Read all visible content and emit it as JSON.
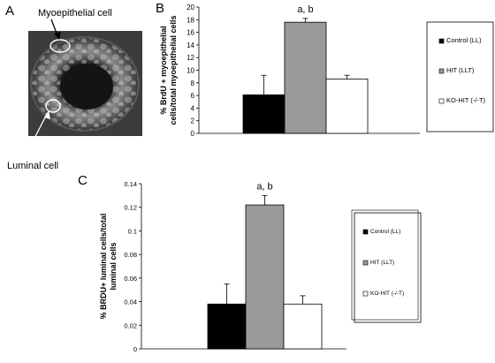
{
  "panel_a": {
    "letter": "A",
    "label_myoepithelial": "Myoepithelial cell",
    "label_luminal": "Luminal cell"
  },
  "panel_b": {
    "letter": "B",
    "significance": "a, b"
  },
  "panel_c": {
    "letter": "C",
    "significance": "a, b"
  },
  "chart_data": [
    {
      "panel": "B",
      "type": "bar",
      "categories": [
        "Control (LL)",
        "HIT (LLT)",
        "KO-HIT (-/-T)"
      ],
      "values": [
        6.1,
        17.6,
        8.6
      ],
      "errors": [
        3.1,
        0.6,
        0.6
      ],
      "colors": [
        "#000000",
        "#999999",
        "#ffffff"
      ],
      "ylabel_line1": "% BrdU + myoepithelial",
      "ylabel_line2": "cells/total myoepithelial cells",
      "ylim": [
        0,
        20
      ],
      "yticks": [
        "0",
        "2",
        "4",
        "6",
        "8",
        "10",
        "12",
        "14",
        "16",
        "18",
        "20"
      ],
      "legend": [
        "Control (LL)",
        "HIT (LLT)",
        "KO-HIT (-/-T)"
      ],
      "legend_position": "right",
      "annotation": "a, b"
    },
    {
      "panel": "C",
      "type": "bar",
      "categories": [
        "Control (LL)",
        "HIT (LLT)",
        "KO-HIT (-/-T)"
      ],
      "values": [
        0.038,
        0.122,
        0.038
      ],
      "errors": [
        0.017,
        0.008,
        0.007
      ],
      "colors": [
        "#000000",
        "#999999",
        "#ffffff"
      ],
      "ylabel_line1": "% BRDU+ luminal cells/total",
      "ylabel_line2": "luminal cells",
      "ylim": [
        0,
        0.14
      ],
      "yticks": [
        "0",
        "0.02",
        "0.04",
        "0.06",
        "0.08",
        "0.1",
        "0.12",
        "0.14"
      ],
      "legend": [
        "Control (LL)",
        "HIT (LLT)",
        "KO-HIT (-/-T)"
      ],
      "legend_position": "right",
      "annotation": "a, b"
    }
  ]
}
